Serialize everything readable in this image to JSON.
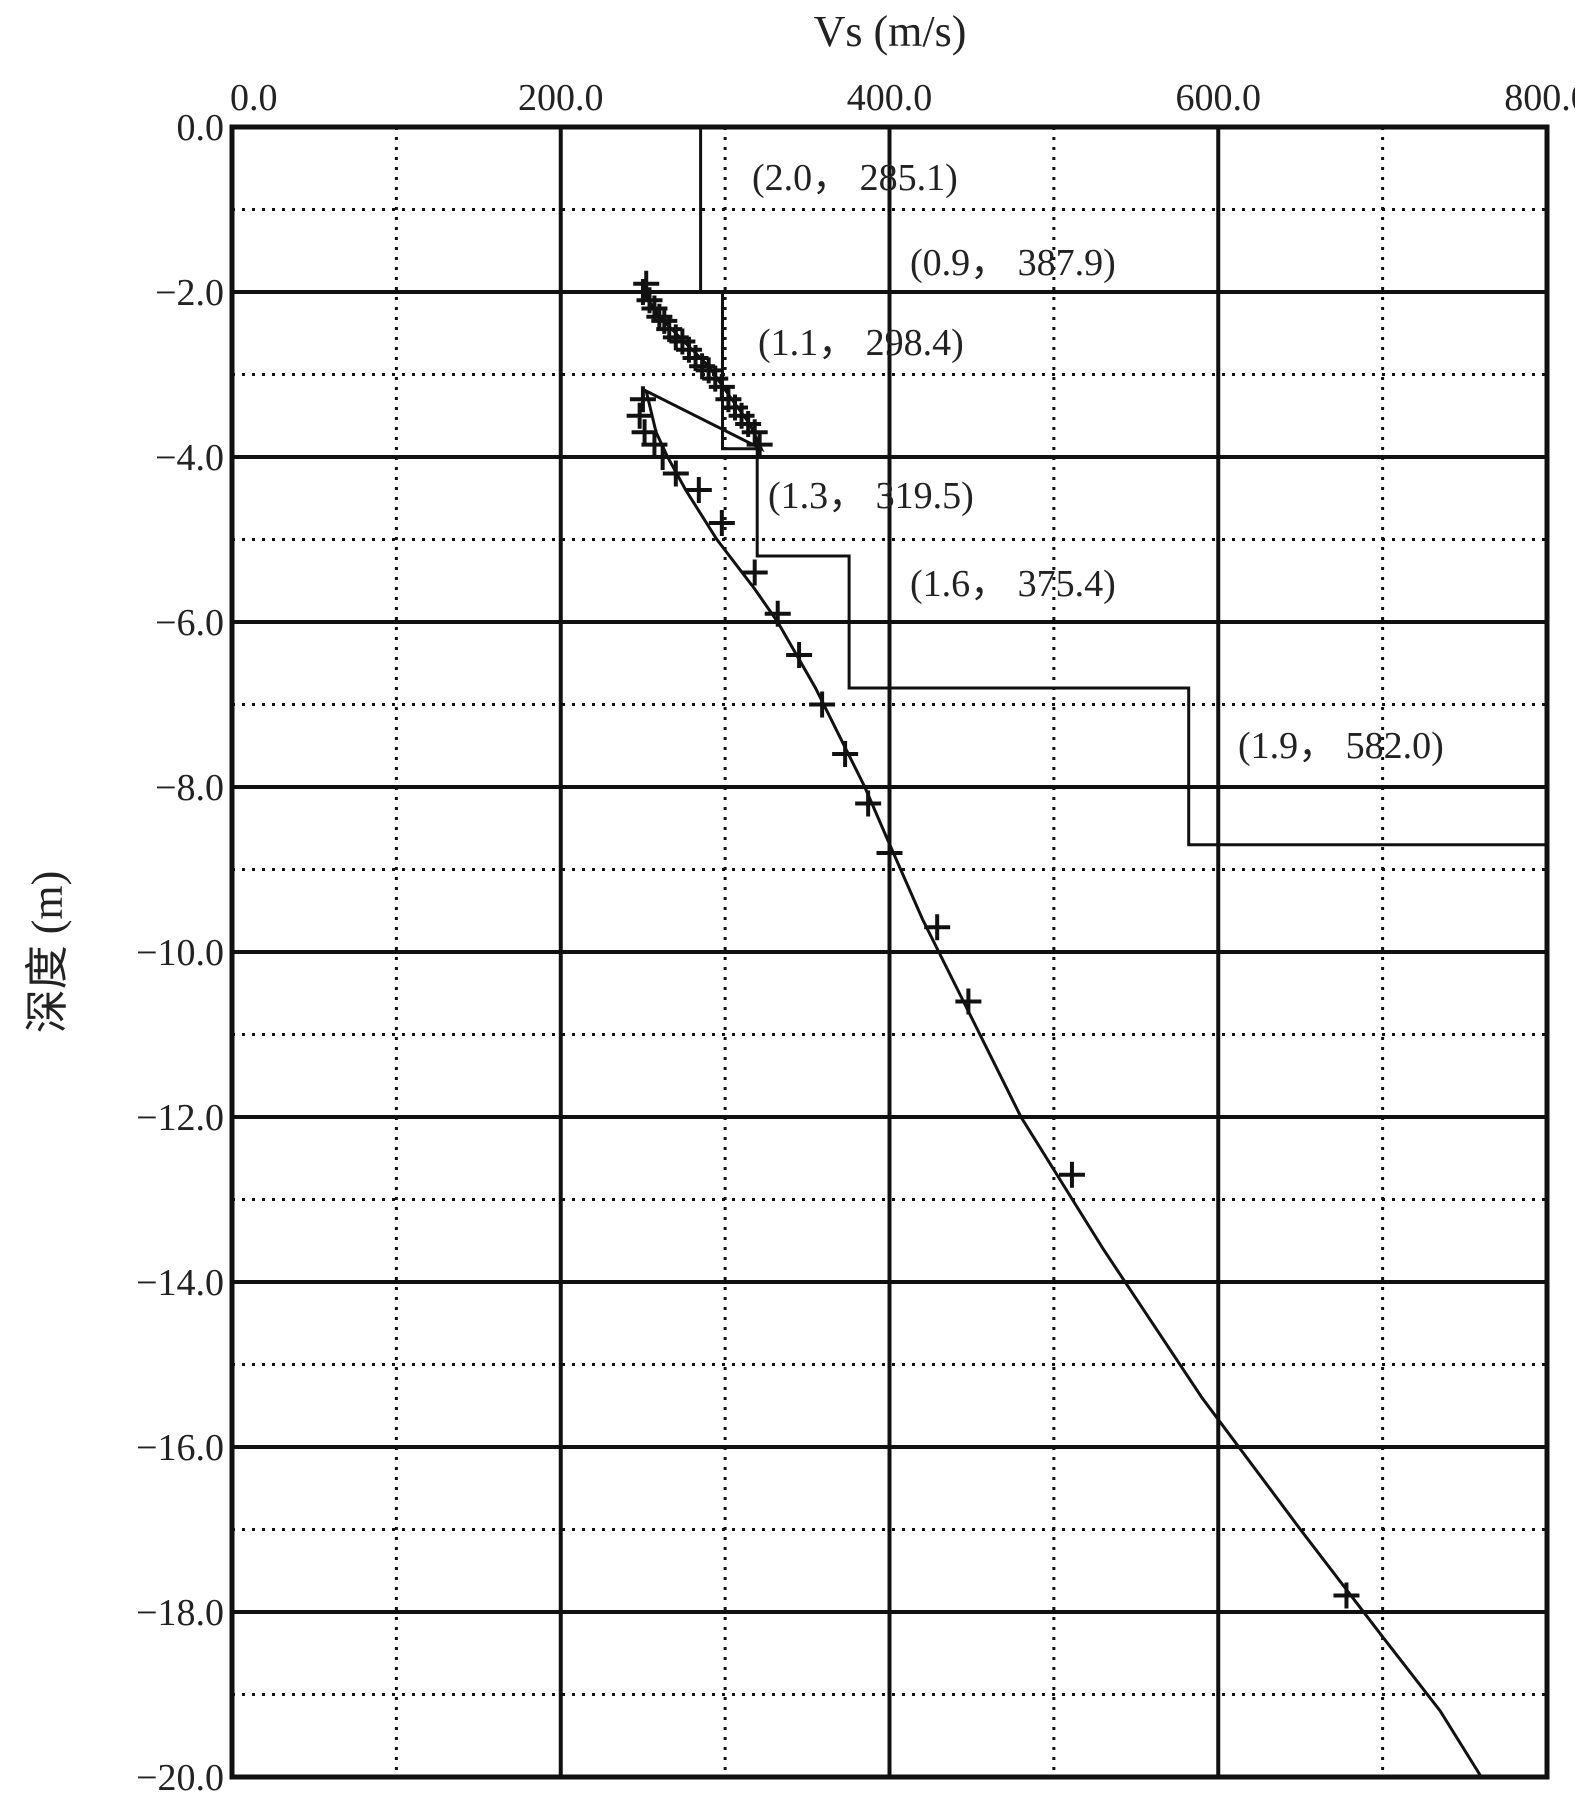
{
  "chart_data": {
    "type": "line",
    "xlabel": "Vs (m/s)",
    "ylabel": "深度 (m)",
    "xlim": [
      0,
      800
    ],
    "ylim": [
      -20,
      0
    ],
    "x_ticks": [
      "0.0",
      "200.0",
      "400.0",
      "600.0",
      "800.0"
    ],
    "y_ticks": [
      "0.0",
      "−2.0",
      "−4.0",
      "−6.0",
      "−8.0",
      "−10.0",
      "−12.0",
      "−14.0",
      "−16.0",
      "−18.0",
      "−20.0"
    ],
    "grid": true,
    "series": [
      {
        "type": "step-profile",
        "points": [
          [
            285.1,
            0
          ],
          [
            285.1,
            -2.0
          ],
          [
            298.4,
            -2.0
          ],
          [
            298.4,
            -3.9
          ],
          [
            319.5,
            -3.9
          ],
          [
            319.5,
            -5.2
          ],
          [
            375.4,
            -5.2
          ],
          [
            375.4,
            -6.8
          ],
          [
            582.0,
            -6.8
          ],
          [
            582.0,
            -8.7
          ],
          [
            800,
            -8.7
          ]
        ]
      },
      {
        "type": "line",
        "points": [
          [
            250,
            -2.0
          ],
          [
            260,
            -2.3
          ],
          [
            275,
            -2.6
          ],
          [
            290,
            -2.9
          ],
          [
            304,
            -3.3
          ],
          [
            315,
            -3.6
          ],
          [
            322,
            -3.9
          ],
          [
            252,
            -3.2
          ],
          [
            258,
            -3.7
          ],
          [
            265,
            -4.0
          ],
          [
            276,
            -4.4
          ],
          [
            295,
            -5.0
          ],
          [
            318,
            -5.6
          ],
          [
            332,
            -6.0
          ],
          [
            355,
            -6.8
          ],
          [
            385,
            -8.0
          ],
          [
            398,
            -8.6
          ],
          [
            420,
            -9.6
          ],
          [
            445,
            -10.6
          ],
          [
            480,
            -12.0
          ],
          [
            530,
            -13.6
          ],
          [
            590,
            -15.4
          ],
          [
            650,
            -17.0
          ],
          [
            700,
            -18.3
          ],
          [
            735,
            -19.2
          ],
          [
            760,
            -20.0
          ]
        ]
      },
      {
        "type": "scatter",
        "marker": "+",
        "points": [
          [
            250,
            -2.0
          ],
          [
            252,
            -1.9
          ],
          [
            254,
            -2.1
          ],
          [
            257,
            -2.2
          ],
          [
            260,
            -2.3
          ],
          [
            263,
            -2.35
          ],
          [
            266,
            -2.45
          ],
          [
            270,
            -2.55
          ],
          [
            274,
            -2.6
          ],
          [
            278,
            -2.7
          ],
          [
            282,
            -2.8
          ],
          [
            286,
            -2.9
          ],
          [
            290,
            -2.95
          ],
          [
            294,
            -3.05
          ],
          [
            298,
            -3.15
          ],
          [
            302,
            -3.3
          ],
          [
            306,
            -3.4
          ],
          [
            310,
            -3.5
          ],
          [
            314,
            -3.6
          ],
          [
            318,
            -3.7
          ],
          [
            321,
            -3.85
          ],
          [
            250,
            -3.3
          ],
          [
            248,
            -3.5
          ],
          [
            251,
            -3.7
          ],
          [
            257,
            -3.85
          ],
          [
            262,
            -4.0
          ],
          [
            270,
            -4.2
          ],
          [
            284,
            -4.4
          ],
          [
            298,
            -4.8
          ],
          [
            318,
            -5.4
          ],
          [
            332,
            -5.9
          ],
          [
            345,
            -6.4
          ],
          [
            359,
            -7.0
          ],
          [
            373,
            -7.6
          ],
          [
            387,
            -8.2
          ],
          [
            400,
            -8.8
          ],
          [
            429,
            -9.7
          ],
          [
            448,
            -10.6
          ],
          [
            511,
            -12.7
          ],
          [
            678,
            -17.8
          ]
        ]
      }
    ],
    "annotations": [
      "(2.0， 285.1)",
      "(0.9， 387.9)",
      "(1.1， 298.4)",
      "(1.3， 319.5)",
      "(1.6， 375.4)",
      "(1.9， 582.0)"
    ]
  }
}
